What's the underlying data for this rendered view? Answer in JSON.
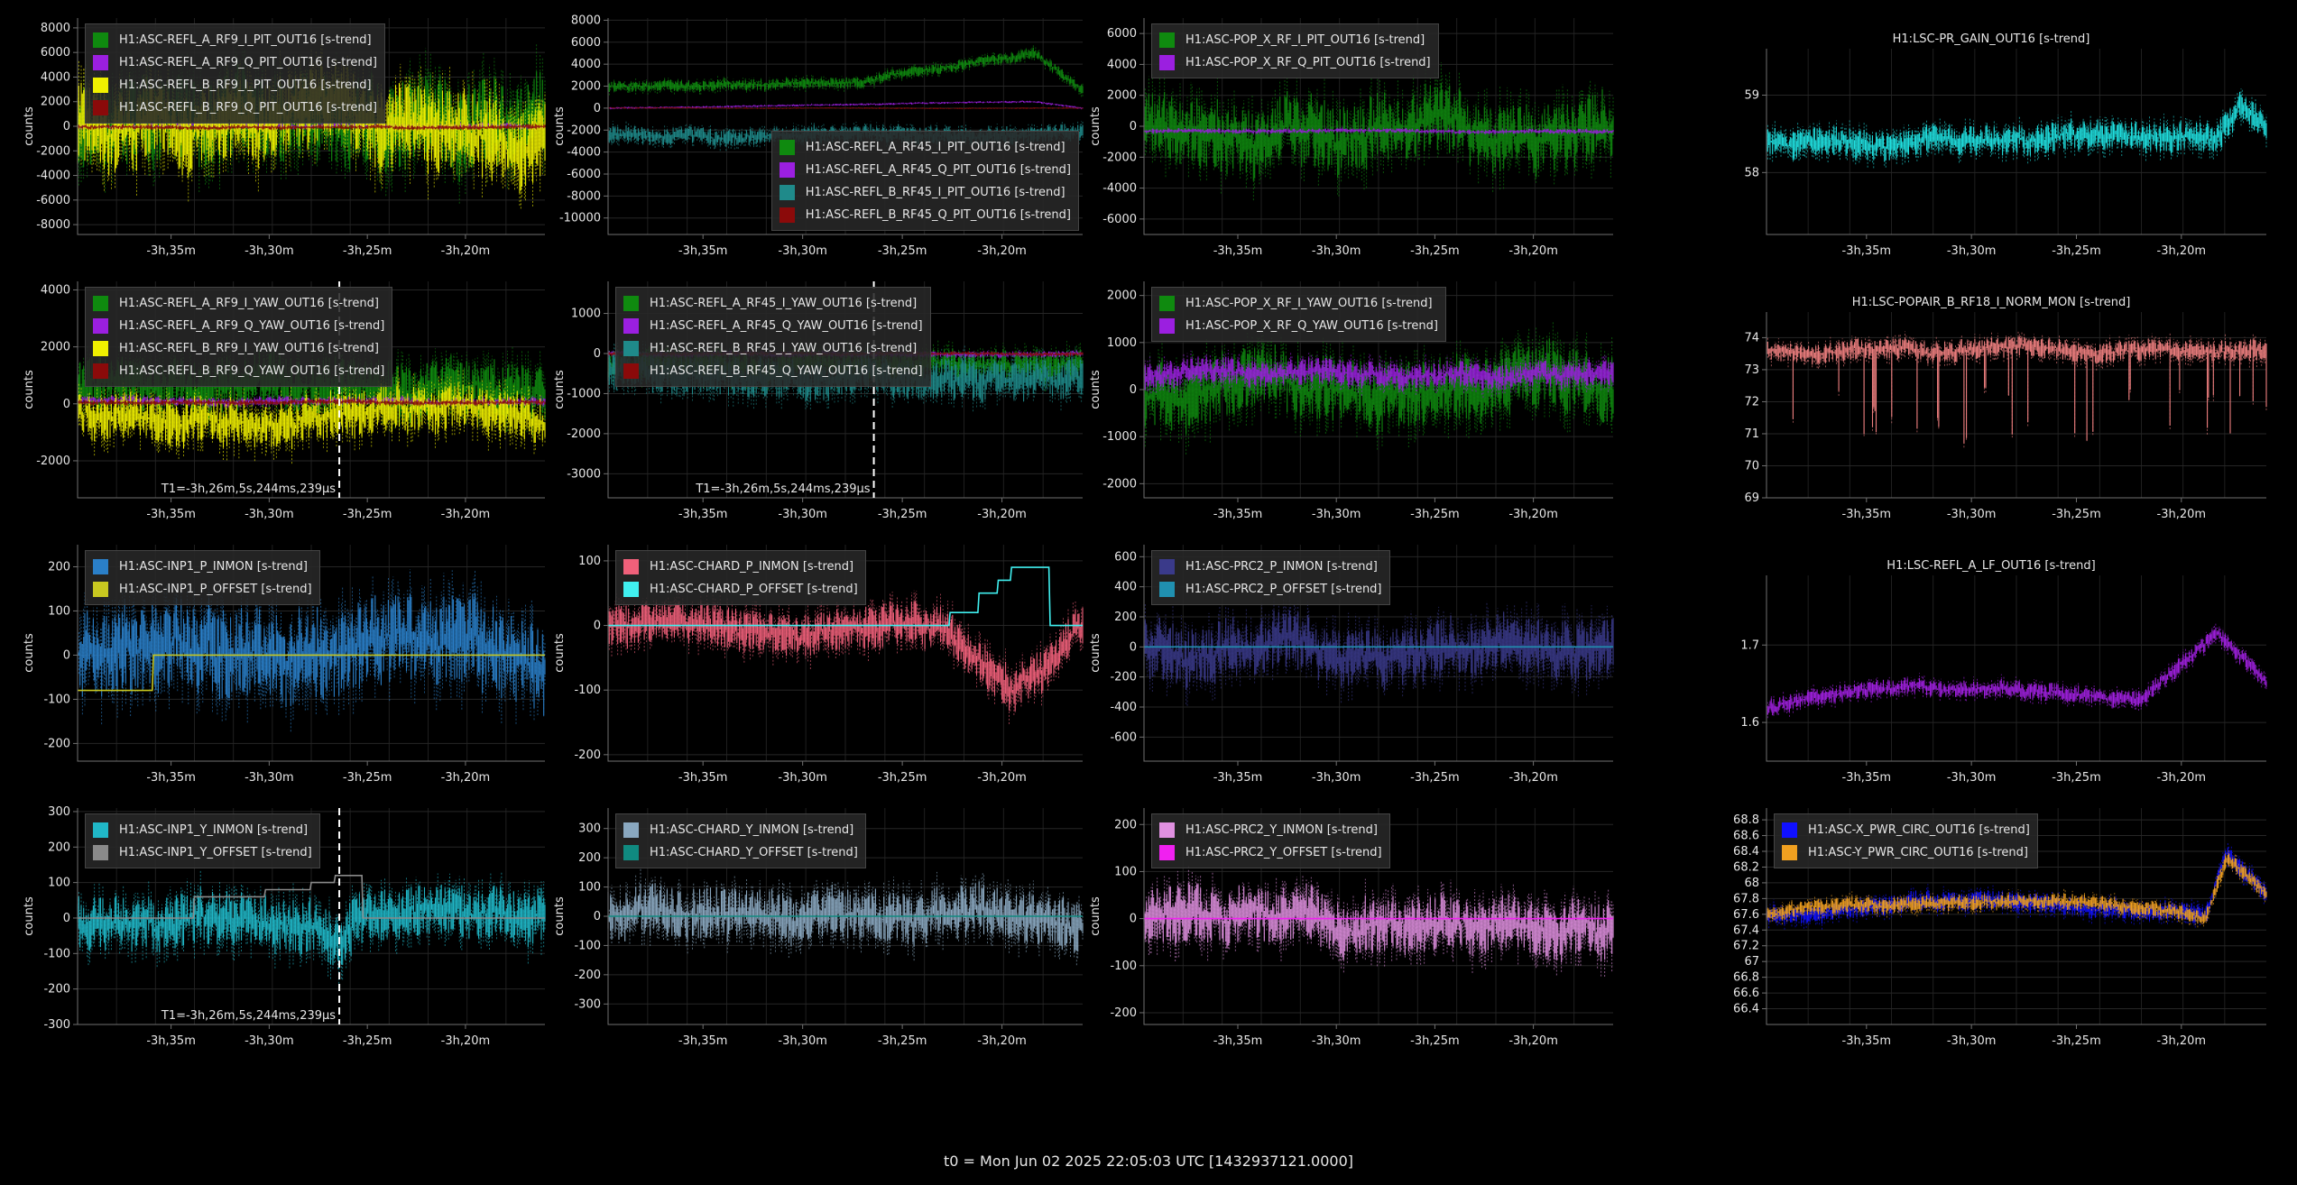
{
  "footer": {
    "t0": "t0 = Mon Jun 02 2025 22:05:03 UTC [1432937121.0000]"
  },
  "colors": {
    "background": "#000000",
    "grid": "#2a2a2a",
    "axis": "#6a6a6a",
    "text": "#e6e6e6"
  },
  "chart_data": [
    {
      "type": "line",
      "ylabel": "counts",
      "xticks": [
        "-3h,35m",
        "-3h,30m",
        "-3h,25m",
        "-3h,20m"
      ],
      "ylim": [
        -8800,
        8800
      ],
      "yticks": [
        -8000,
        -6000,
        -4000,
        -2000,
        0,
        2000,
        4000,
        6000,
        8000
      ],
      "series": [
        {
          "name": "H1:ASC-REFL_A_RF9_I_PIT_OUT16 [s-trend]",
          "color": "#0f8a0f",
          "level": 0,
          "amp": 6500
        },
        {
          "name": "H1:ASC-REFL_A_RF9_Q_PIT_OUT16 [s-trend]",
          "color": "#9b1fe0",
          "level": 0,
          "amp": 400
        },
        {
          "name": "H1:ASC-REFL_B_RF9_I_PIT_OUT16 [s-trend]",
          "color": "#f0f000",
          "level": 0,
          "amp": 6000
        },
        {
          "name": "H1:ASC-REFL_B_RF9_Q_PIT_OUT16 [s-trend]",
          "color": "#8b0a0a",
          "level": -50,
          "amp": 300
        }
      ]
    },
    {
      "type": "line",
      "ylabel": "counts",
      "xticks": [
        "-3h,35m",
        "-3h,30m",
        "-3h,25m",
        "-3h,20m"
      ],
      "ylim": [
        -11500,
        8200
      ],
      "yticks": [
        -10000,
        -8000,
        -6000,
        -4000,
        -2000,
        0,
        2000,
        4000,
        6000,
        8000
      ],
      "legend_position": "bottom-right",
      "series": [
        {
          "name": "H1:ASC-REFL_A_RF45_I_PIT_OUT16 [s-trend]",
          "color": "#0f8a0f",
          "level": 2000,
          "amp": 900,
          "trend": [
            [
              0,
              0
            ],
            [
              0.55,
              500
            ],
            [
              0.9,
              3000
            ],
            [
              1,
              -500
            ]
          ]
        },
        {
          "name": "H1:ASC-REFL_A_RF45_Q_PIT_OUT16 [s-trend]",
          "color": "#9b1fe0",
          "level": 0,
          "amp": 150,
          "trend": [
            [
              0,
              0
            ],
            [
              0.9,
              600
            ],
            [
              1,
              0
            ]
          ]
        },
        {
          "name": "H1:ASC-REFL_B_RF45_I_PIT_OUT16 [s-trend]",
          "color": "#1f8a8a",
          "level": -2500,
          "amp": 1400
        },
        {
          "name": "H1:ASC-REFL_B_RF45_Q_PIT_OUT16 [s-trend]",
          "color": "#8b0a0a",
          "level": 0,
          "amp": 100
        }
      ]
    },
    {
      "type": "line",
      "ylabel": "counts",
      "xticks": [
        "-3h,35m",
        "-3h,30m",
        "-3h,25m",
        "-3h,20m"
      ],
      "ylim": [
        -7000,
        7000
      ],
      "yticks": [
        -6000,
        -4000,
        -2000,
        0,
        2000,
        4000,
        6000
      ],
      "series": [
        {
          "name": "H1:ASC-POP_X_RF_I_PIT_OUT16 [s-trend]",
          "color": "#0f8a0f",
          "level": 0,
          "amp": 4000
        },
        {
          "name": "H1:ASC-POP_X_RF_Q_PIT_OUT16 [s-trend]",
          "color": "#9b1fe0",
          "level": -300,
          "amp": 250
        }
      ]
    },
    {
      "type": "line",
      "title": "H1:LSC-PR_GAIN_OUT16 [s-trend]",
      "ylabel": "",
      "xticks": [
        "-3h,35m",
        "-3h,30m",
        "-3h,25m",
        "-3h,20m"
      ],
      "ylim": [
        57.2,
        59.6
      ],
      "yticks": [
        58,
        59
      ],
      "series": [
        {
          "name": "",
          "color": "#20e0e0",
          "level": 58.4,
          "amp": 0.35,
          "trend": [
            [
              0,
              0
            ],
            [
              0.9,
              0.05
            ],
            [
              0.95,
              0.5
            ],
            [
              1,
              0.2
            ]
          ]
        }
      ]
    },
    {
      "type": "line",
      "ylabel": "counts",
      "xticks": [
        "-3h,35m",
        "-3h,30m",
        "-3h,25m",
        "-3h,20m"
      ],
      "ylim": [
        -3300,
        4300
      ],
      "yticks": [
        -2000,
        0,
        2000,
        4000
      ],
      "cursor": {
        "label": "T1=-3h,26m,5s,244ms,239μs",
        "xfrac": 0.56
      },
      "series": [
        {
          "name": "H1:ASC-REFL_A_RF9_I_YAW_OUT16 [s-trend]",
          "color": "#0f8a0f",
          "level": 500,
          "amp": 1800
        },
        {
          "name": "H1:ASC-REFL_A_RF9_Q_YAW_OUT16 [s-trend]",
          "color": "#9b1fe0",
          "level": 100,
          "amp": 250
        },
        {
          "name": "H1:ASC-REFL_B_RF9_I_YAW_OUT16 [s-trend]",
          "color": "#f0f000",
          "level": -300,
          "amp": 1500
        },
        {
          "name": "H1:ASC-REFL_B_RF9_Q_YAW_OUT16 [s-trend]",
          "color": "#8b0a0a",
          "level": 50,
          "amp": 150
        }
      ]
    },
    {
      "type": "line",
      "ylabel": "counts",
      "xticks": [
        "-3h,35m",
        "-3h,30m",
        "-3h,25m",
        "-3h,20m"
      ],
      "ylim": [
        -3600,
        1800
      ],
      "yticks": [
        -3000,
        -2000,
        -1000,
        0,
        1000
      ],
      "cursor": {
        "label": "T1=-3h,26m,5s,244ms,239μs",
        "xfrac": 0.56
      },
      "series": [
        {
          "name": "H1:ASC-REFL_A_RF45_I_YAW_OUT16 [s-trend]",
          "color": "#0f8a0f",
          "level": -300,
          "amp": 700
        },
        {
          "name": "H1:ASC-REFL_A_RF45_Q_YAW_OUT16 [s-trend]",
          "color": "#9b1fe0",
          "level": 0,
          "amp": 120
        },
        {
          "name": "H1:ASC-REFL_B_RF45_I_YAW_OUT16 [s-trend]",
          "color": "#1f8a8a",
          "level": -500,
          "amp": 900
        },
        {
          "name": "H1:ASC-REFL_B_RF45_Q_YAW_OUT16 [s-trend]",
          "color": "#8b0a0a",
          "level": 0,
          "amp": 80
        }
      ]
    },
    {
      "type": "line",
      "ylabel": "counts",
      "xticks": [
        "-3h,35m",
        "-3h,30m",
        "-3h,25m",
        "-3h,20m"
      ],
      "ylim": [
        -2300,
        2300
      ],
      "yticks": [
        -2000,
        -1000,
        0,
        1000,
        2000
      ],
      "series": [
        {
          "name": "H1:ASC-POP_X_RF_I_YAW_OUT16 [s-trend]",
          "color": "#0f8a0f",
          "level": 0,
          "amp": 1300
        },
        {
          "name": "H1:ASC-POP_X_RF_Q_YAW_OUT16 [s-trend]",
          "color": "#9b1fe0",
          "level": 300,
          "amp": 500
        }
      ]
    },
    {
      "type": "line",
      "title": "H1:LSC-POPAIR_B_RF18_I_NORM_MON [s-trend]",
      "ylabel": "",
      "xticks": [
        "-3h,35m",
        "-3h,30m",
        "-3h,25m",
        "-3h,20m"
      ],
      "ylim": [
        69.0,
        74.8
      ],
      "yticks": [
        69,
        70,
        71,
        72,
        73,
        74
      ],
      "series": [
        {
          "name": "",
          "color": "#f08080",
          "level": 73.6,
          "amp": 0.6,
          "dips": true
        }
      ]
    },
    {
      "type": "line",
      "ylabel": "counts",
      "xticks": [
        "-3h,35m",
        "-3h,30m",
        "-3h,25m",
        "-3h,20m"
      ],
      "ylim": [
        -240,
        250
      ],
      "yticks": [
        -200,
        -100,
        0,
        100,
        200
      ],
      "series": [
        {
          "name": "H1:ASC-INP1_P_INMON [s-trend]",
          "color": "#2a7fc8",
          "level": 0,
          "amp": 180
        },
        {
          "name": "H1:ASC-INP1_P_OFFSET [s-trend]",
          "color": "#c8c820",
          "line": true,
          "steps": [
            [
              0,
              -80
            ],
            [
              0.155,
              -80
            ],
            [
              0.16,
              0
            ],
            [
              1,
              0
            ]
          ]
        }
      ]
    },
    {
      "type": "line",
      "ylabel": "counts",
      "xticks": [
        "-3h,35m",
        "-3h,30m",
        "-3h,25m",
        "-3h,20m"
      ],
      "ylim": [
        -210,
        125
      ],
      "yticks": [
        -200,
        -100,
        0,
        100
      ],
      "series": [
        {
          "name": "H1:ASC-CHARD_P_INMON [s-trend]",
          "color": "#f0607a",
          "level": 0,
          "amp": 60,
          "trend": [
            [
              0,
              0
            ],
            [
              0.7,
              0
            ],
            [
              0.85,
              -90
            ],
            [
              1,
              0
            ]
          ]
        },
        {
          "name": "H1:ASC-CHARD_P_OFFSET [s-trend]",
          "color": "#40f0f0",
          "line": true,
          "steps": [
            [
              0,
              0
            ],
            [
              0.68,
              0
            ],
            [
              0.72,
              20
            ],
            [
              0.78,
              50
            ],
            [
              0.82,
              70
            ],
            [
              0.85,
              90
            ],
            [
              0.9,
              90
            ],
            [
              0.93,
              0
            ],
            [
              1,
              0
            ]
          ]
        }
      ]
    },
    {
      "type": "line",
      "ylabel": "counts",
      "xticks": [
        "-3h,35m",
        "-3h,30m",
        "-3h,25m",
        "-3h,20m"
      ],
      "ylim": [
        -760,
        680
      ],
      "yticks": [
        -600,
        -400,
        -200,
        0,
        200,
        400,
        600
      ],
      "series": [
        {
          "name": "H1:ASC-PRC2_P_INMON [s-trend]",
          "color": "#3a3a8a",
          "level": 0,
          "amp": 350
        },
        {
          "name": "H1:ASC-PRC2_P_OFFSET [s-trend]",
          "color": "#2090b0",
          "line": true,
          "steps": [
            [
              0,
              0
            ],
            [
              1,
              0
            ]
          ]
        }
      ]
    },
    {
      "type": "line",
      "title": "H1:LSC-REFL_A_LF_OUT16 [s-trend]",
      "ylabel": "",
      "xticks": [
        "-3h,35m",
        "-3h,30m",
        "-3h,25m",
        "-3h,20m"
      ],
      "ylim": [
        1.55,
        1.79
      ],
      "yticks": [
        1.6,
        1.7
      ],
      "series": [
        {
          "name": "",
          "color": "#a020e0",
          "level": 1.63,
          "amp": 0.02,
          "trend": [
            [
              0,
              -0.01
            ],
            [
              0.3,
              0.02
            ],
            [
              0.6,
              0.01
            ],
            [
              0.75,
              0
            ],
            [
              0.85,
              0.06
            ],
            [
              0.9,
              0.09
            ],
            [
              1,
              0.02
            ]
          ]
        }
      ]
    },
    {
      "type": "line",
      "ylabel": "counts",
      "xticks": [
        "-3h,35m",
        "-3h,30m",
        "-3h,25m",
        "-3h,20m"
      ],
      "ylim": [
        -300,
        310
      ],
      "yticks": [
        -300,
        -200,
        -100,
        0,
        100,
        200,
        300
      ],
      "cursor": {
        "label": "T1=-3h,26m,5s,244ms,239μs",
        "xfrac": 0.56
      },
      "series": [
        {
          "name": "H1:ASC-INP1_Y_INMON [s-trend]",
          "color": "#20b8c8",
          "level": 0,
          "amp": 140,
          "trend": [
            [
              0,
              0
            ],
            [
              0.5,
              -30
            ],
            [
              0.56,
              -80
            ],
            [
              0.6,
              20
            ],
            [
              1,
              0
            ]
          ]
        },
        {
          "name": "H1:ASC-INP1_Y_OFFSET [s-trend]",
          "color": "#8a8a8a",
          "line": true,
          "steps": [
            [
              0,
              0
            ],
            [
              0.24,
              0
            ],
            [
              0.25,
              60
            ],
            [
              0.35,
              60
            ],
            [
              0.4,
              80
            ],
            [
              0.5,
              100
            ],
            [
              0.55,
              120
            ],
            [
              0.6,
              120
            ],
            [
              0.61,
              0
            ],
            [
              1,
              0
            ]
          ]
        }
      ]
    },
    {
      "type": "line",
      "ylabel": "counts",
      "xticks": [
        "-3h,35m",
        "-3h,30m",
        "-3h,25m",
        "-3h,20m"
      ],
      "ylim": [
        -370,
        370
      ],
      "yticks": [
        -300,
        -200,
        -100,
        0,
        100,
        200,
        300
      ],
      "series": [
        {
          "name": "H1:ASC-CHARD_Y_INMON [s-trend]",
          "color": "#8aa8c0",
          "level": 0,
          "amp": 160
        },
        {
          "name": "H1:ASC-CHARD_Y_OFFSET [s-trend]",
          "color": "#108a80",
          "line": true,
          "steps": [
            [
              0,
              0
            ],
            [
              1,
              0
            ]
          ]
        }
      ]
    },
    {
      "type": "line",
      "ylabel": "counts",
      "xticks": [
        "-3h,35m",
        "-3h,30m",
        "-3h,25m",
        "-3h,20m"
      ],
      "ylim": [
        -225,
        235
      ],
      "yticks": [
        -200,
        -100,
        0,
        100,
        200
      ],
      "series": [
        {
          "name": "H1:ASC-PRC2_Y_INMON [s-trend]",
          "color": "#e090e0",
          "level": 0,
          "amp": 110
        },
        {
          "name": "H1:ASC-PRC2_Y_OFFSET [s-trend]",
          "color": "#f020f0",
          "line": true,
          "steps": [
            [
              0,
              0
            ],
            [
              1,
              0
            ]
          ]
        }
      ]
    },
    {
      "type": "line",
      "ylabel": "",
      "xticks": [
        "-3h,35m",
        "-3h,30m",
        "-3h,25m",
        "-3h,20m"
      ],
      "ylim": [
        66.2,
        68.95
      ],
      "yticks": [
        66.4,
        66.6,
        66.8,
        67,
        67.2,
        67.4,
        67.6,
        67.8,
        68,
        68.2,
        68.4,
        68.6,
        68.8
      ],
      "series": [
        {
          "name": "H1:ASC-X_PWR_CIRC_OUT16 [s-trend]",
          "color": "#1010ff",
          "level": 67.7,
          "amp": 0.22,
          "trend": [
            [
              0,
              -0.1
            ],
            [
              0.3,
              0.05
            ],
            [
              0.6,
              0.05
            ],
            [
              0.88,
              -0.1
            ],
            [
              0.92,
              0.7
            ],
            [
              1,
              0.15
            ]
          ]
        },
        {
          "name": "H1:ASC-Y_PWR_CIRC_OUT16 [s-trend]",
          "color": "#f0a020",
          "level": 67.7,
          "amp": 0.18,
          "trend": [
            [
              0,
              -0.1
            ],
            [
              0.3,
              0.05
            ],
            [
              0.6,
              0.05
            ],
            [
              0.88,
              -0.1
            ],
            [
              0.92,
              0.6
            ],
            [
              1,
              0.15
            ]
          ]
        }
      ]
    }
  ]
}
